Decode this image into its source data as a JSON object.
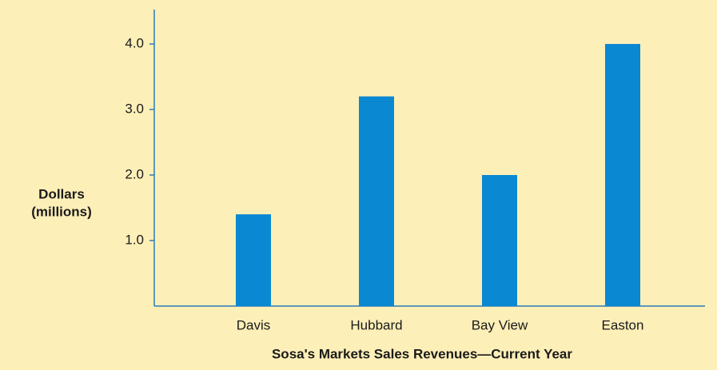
{
  "chart_data": {
    "type": "bar",
    "title": "Sosa's Markets Sales Revenues—Current Year",
    "ylabel": [
      "Dollars",
      "(millions)"
    ],
    "categories": [
      "Davis",
      "Hubbard",
      "Bay View",
      "Easton"
    ],
    "values": [
      1.4,
      3.2,
      2.0,
      4.0
    ],
    "color": "#0a88d2",
    "ylim": [
      0,
      4.5
    ],
    "yticks": [
      {
        "value": 1,
        "label": "1.0"
      },
      {
        "value": 2,
        "label": "2.0"
      },
      {
        "value": 3,
        "label": "3.0"
      },
      {
        "value": 4,
        "label": "4.0"
      }
    ],
    "grid": false
  }
}
